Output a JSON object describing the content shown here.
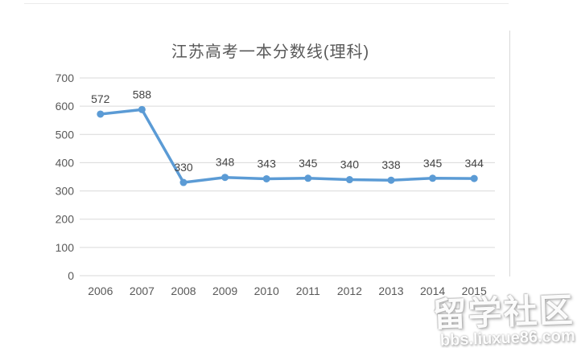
{
  "page": {
    "watermark": {
      "site_name": "留学社区",
      "site_url": "bbs.liuxue86.com"
    }
  },
  "chart_data": {
    "type": "line",
    "title": "江苏高考一本分数线(理科)",
    "categories": [
      "2006",
      "2007",
      "2008",
      "2009",
      "2010",
      "2011",
      "2012",
      "2013",
      "2014",
      "2015"
    ],
    "values": [
      572,
      588,
      330,
      348,
      343,
      345,
      340,
      338,
      345,
      344
    ],
    "xlabel": "",
    "ylabel": "",
    "ylim": [
      0,
      700
    ],
    "ytick_step": 100,
    "grid": "horizontal",
    "legend": "none",
    "data_labels": true,
    "colors": {
      "line": "#5B9BD5",
      "marker": "#5B9BD5",
      "grid": "#D9D9D9",
      "tick_text": "#595959",
      "label_text": "#444444",
      "title_text": "#595959"
    }
  }
}
